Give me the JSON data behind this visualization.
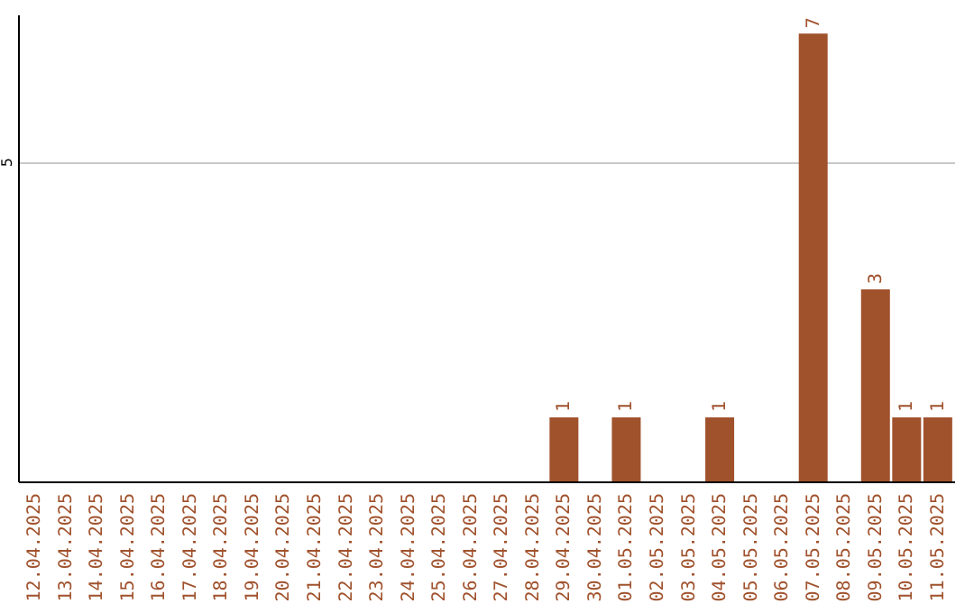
{
  "chart_data": {
    "type": "bar",
    "categories": [
      "12.04.2025",
      "13.04.2025",
      "14.04.2025",
      "15.04.2025",
      "16.04.2025",
      "17.04.2025",
      "18.04.2025",
      "19.04.2025",
      "20.04.2025",
      "21.04.2025",
      "22.04.2025",
      "23.04.2025",
      "24.04.2025",
      "25.04.2025",
      "26.04.2025",
      "27.04.2025",
      "28.04.2025",
      "29.04.2025",
      "30.04.2025",
      "01.05.2025",
      "02.05.2025",
      "03.05.2025",
      "04.05.2025",
      "05.05.2025",
      "06.05.2025",
      "07.05.2025",
      "08.05.2025",
      "09.05.2025",
      "10.05.2025",
      "11.05.2025"
    ],
    "values": [
      null,
      null,
      null,
      null,
      null,
      null,
      null,
      null,
      null,
      null,
      null,
      null,
      null,
      null,
      null,
      null,
      null,
      1,
      null,
      1,
      null,
      null,
      1,
      null,
      null,
      7,
      null,
      3,
      1,
      1
    ],
    "color": "#a0522d",
    "ylim": [
      0,
      7.3
    ],
    "yticks": [
      5
    ],
    "grid": "y",
    "data_labels": true
  }
}
